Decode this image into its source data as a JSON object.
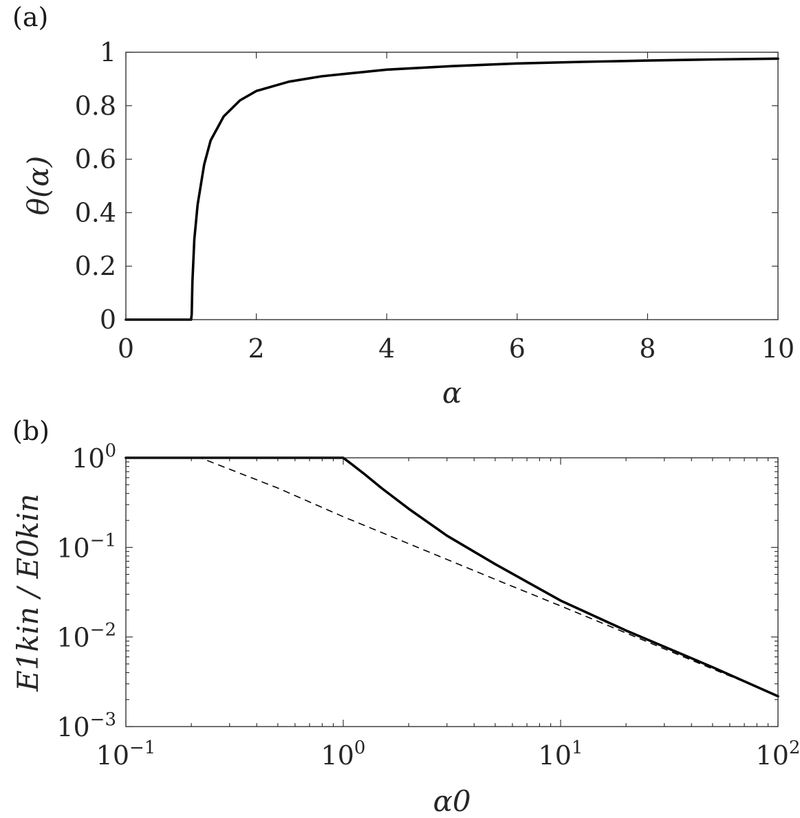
{
  "chart_data": [
    {
      "type": "line",
      "panel_label": "(a)",
      "xlabel": "α",
      "ylabel": "θ(α)",
      "xlim": [
        0,
        10
      ],
      "ylim": [
        0,
        1
      ],
      "x_ticks": [
        0,
        2,
        4,
        6,
        8,
        10
      ],
      "y_ticks": [
        0,
        0.2,
        0.4,
        0.6,
        0.8,
        1
      ],
      "x_tick_labels": [
        "0",
        "2",
        "4",
        "6",
        "8",
        "10"
      ],
      "y_tick_labels": [
        "0",
        "0.2",
        "0.4",
        "0.6",
        "0.8",
        "1"
      ],
      "grid": false,
      "series": [
        {
          "style": "solid",
          "x": [
            0,
            0.5,
            1.0,
            1.01,
            1.02,
            1.05,
            1.1,
            1.2,
            1.3,
            1.5,
            1.75,
            2.0,
            2.5,
            3.0,
            4.0,
            5.0,
            6.0,
            7.0,
            8.0,
            9.0,
            10.0
          ],
          "y": [
            0,
            0,
            0,
            0.02,
            0.14,
            0.3,
            0.43,
            0.58,
            0.67,
            0.76,
            0.82,
            0.855,
            0.89,
            0.91,
            0.935,
            0.948,
            0.958,
            0.964,
            0.969,
            0.973,
            0.976
          ]
        }
      ]
    },
    {
      "type": "line",
      "panel_label": "(b)",
      "xlabel": "α0",
      "ylabel": "E1kin / E0kin",
      "xscale": "log",
      "yscale": "log",
      "xlim": [
        0.1,
        100
      ],
      "ylim": [
        0.001,
        1
      ],
      "x_ticks": [
        0.1,
        1,
        10,
        100
      ],
      "y_ticks": [
        0.001,
        0.01,
        0.1,
        1
      ],
      "x_tick_labels": [
        {
          "base": "10",
          "exp": "−1"
        },
        {
          "base": "10",
          "exp": "0"
        },
        {
          "base": "10",
          "exp": "1"
        },
        {
          "base": "10",
          "exp": "2"
        }
      ],
      "y_tick_labels": [
        {
          "base": "10",
          "exp": "−3"
        },
        {
          "base": "10",
          "exp": "−2"
        },
        {
          "base": "10",
          "exp": "−1"
        },
        {
          "base": "10",
          "exp": "0"
        }
      ],
      "grid": false,
      "series": [
        {
          "style": "solid",
          "x": [
            0.1,
            1.0,
            1.1,
            1.25,
            1.5,
            2.0,
            3.0,
            5.0,
            10.0,
            20.0,
            50.0,
            100.0
          ],
          "y": [
            1,
            1,
            0.84,
            0.66,
            0.46,
            0.27,
            0.135,
            0.065,
            0.0255,
            0.0118,
            0.0046,
            0.00218
          ]
        },
        {
          "style": "dashed",
          "x": [
            0.1,
            0.22,
            0.5,
            1.0,
            2.0,
            5.0,
            10.0,
            20.0,
            50.0,
            100.0
          ],
          "y": [
            1,
            1,
            0.46,
            0.22,
            0.11,
            0.044,
            0.0222,
            0.0111,
            0.0044,
            0.00222
          ]
        }
      ]
    }
  ]
}
